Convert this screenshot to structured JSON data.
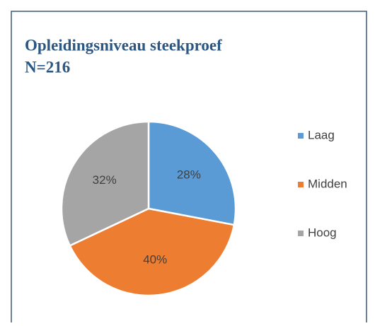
{
  "chart_data": {
    "type": "pie",
    "title": [
      "Opleidingsniveau steekproef",
      "N=216"
    ],
    "categories": [
      "Laag",
      "Midden",
      "Hoog"
    ],
    "values": [
      28,
      40,
      32
    ],
    "value_labels": [
      "28%",
      "40%",
      "32%"
    ],
    "colors": [
      "#5b9bd5",
      "#ed7d31",
      "#a5a5a5"
    ],
    "legend": "right"
  }
}
